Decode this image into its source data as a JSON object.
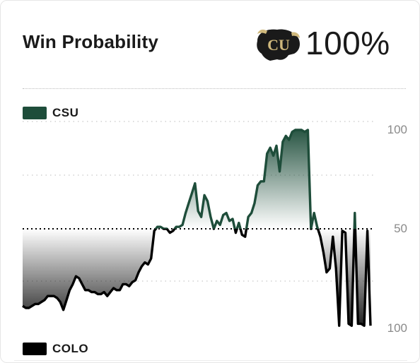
{
  "header": {
    "title": "Win Probability",
    "probability": "100%"
  },
  "legend": {
    "top_team": "CSU",
    "bottom_team": "COLO"
  },
  "colors": {
    "csu": "#1e4d3a",
    "colo": "#000000",
    "logo_gold": "#cfb87c"
  },
  "logo": {
    "name": "colorado-buffaloes-logo",
    "lettering": "CU"
  },
  "chart_data": {
    "type": "line",
    "y_tick_labels": [
      "100",
      "50",
      "100"
    ],
    "midline": 50,
    "y_range": [
      0,
      100
    ],
    "y_meaning": "CSU win probability (%); values below 50 favor COLO",
    "series": [
      {
        "team": "CSU",
        "color": "#1e4d3a",
        "values": [
          11,
          10,
          10,
          11,
          12,
          12,
          13,
          14,
          16,
          16,
          16,
          15,
          13,
          9,
          14,
          19,
          22,
          26,
          25,
          22,
          19,
          19,
          18,
          18,
          17,
          17,
          18,
          16,
          18,
          20,
          19,
          19,
          22,
          22,
          21,
          23,
          24,
          28,
          31,
          33,
          32,
          35,
          49,
          51,
          51,
          50,
          50,
          48,
          49,
          51,
          51,
          52,
          58,
          63,
          68,
          73,
          59,
          56,
          67,
          64,
          56,
          50,
          54,
          52,
          57,
          58,
          54,
          55,
          48,
          53,
          47,
          46,
          56,
          58,
          63,
          72,
          74,
          74,
          88,
          91,
          87,
          92,
          79,
          94,
          97,
          95,
          99,
          100,
          100,
          100,
          99,
          100,
          50,
          58,
          51,
          46,
          38,
          28,
          30,
          46,
          30,
          1,
          49,
          48,
          2,
          1,
          58,
          2,
          2,
          1,
          49,
          1
        ]
      }
    ]
  }
}
